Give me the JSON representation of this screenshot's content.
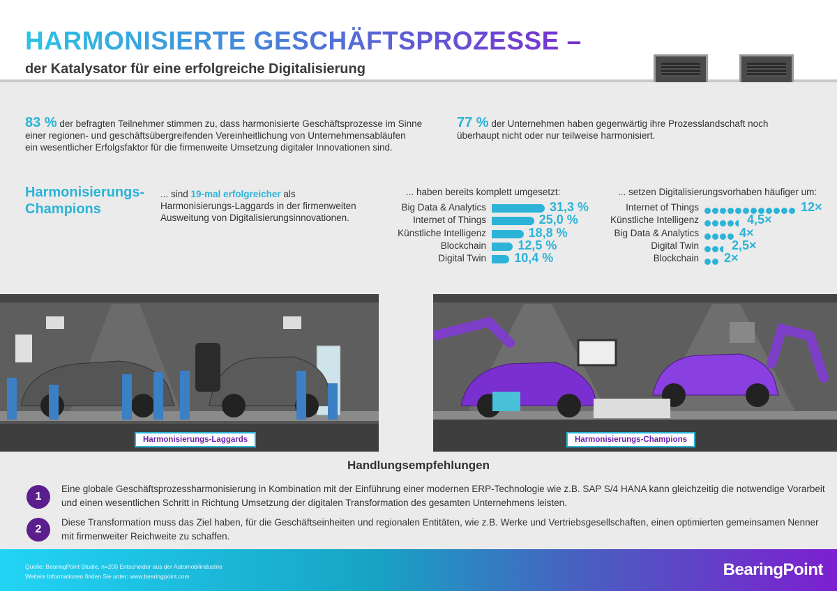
{
  "header": {
    "title": "HARMONISIERTE GESCHÄFTSPROZESSE –",
    "subtitle": "der Katalysator für eine erfolgreiche Digitalisierung"
  },
  "stat1": {
    "value": "83 %",
    "text": "der befragten Teilnehmer stimmen zu, dass harmonisierte Geschäftsprozesse im Sinne",
    "line2": "einer regionen- und geschäftsübergreifenden Vereinheitlichung von Unternehmensabläufen",
    "line3": "ein wesentlicher Erfolgsfaktor für die firmenweite Umsetzung digitaler Innovationen sind."
  },
  "stat2": {
    "value": "77 %",
    "text": "der Unternehmen haben gegenwärtig ihre Prozesslandschaft noch",
    "line2": "überhaupt nicht oder nur teilweise harmonisiert."
  },
  "champions": {
    "heading1": "Harmonisierungs-",
    "heading2": "Champions",
    "pre": "... sind ",
    "highlight": "19-mal erfolgreicher",
    "post": " als",
    "line2": "Harmonisierungs-Laggards in der firmenweiten",
    "line3": "Ausweitung von Digitalisierungsinnovationen."
  },
  "chart_data": [
    {
      "type": "bar",
      "title": "... haben bereits komplett umgesetzt:",
      "categories": [
        "Big Data & Analytics",
        "Internet of Things",
        "Künstliche Intelligenz",
        "Blockchain",
        "Digital Twin"
      ],
      "values": [
        31.3,
        25.0,
        18.8,
        12.5,
        10.4
      ],
      "labels": [
        "31,3 %",
        "25,0 %",
        "18,8 %",
        "12,5 %",
        "10,4 %"
      ],
      "color": "#2bb3d8"
    },
    {
      "type": "bar",
      "title": "... setzen Digitalisierungsvorhaben häufiger um:",
      "categories": [
        "Internet of Things",
        "Künstliche Intelligenz",
        "Big Data & Analytics",
        "Digital Twin",
        "Blockchain"
      ],
      "values": [
        12,
        4.5,
        4,
        2.5,
        2
      ],
      "labels": [
        "12×",
        "4,5×",
        "4×",
        "2,5×",
        "2×"
      ],
      "color": "#2bb3d8"
    }
  ],
  "scenes": {
    "left_label": "Harmonisierungs-Laggards",
    "right_label": "Harmonisierungs-Champions"
  },
  "recommendations": {
    "title": "Handlungsempfehlungen",
    "items": [
      {
        "num": "1",
        "line1": "Eine globale Geschäftsprozessharmonisierung in Kombination mit der Einführung einer modernen ERP-Technologie wie z.B. SAP S/4 HANA kann gleichzeitig die notwendige Vorarbeit",
        "line2": "und einen wesentlichen Schritt in Richtung Umsetzung der digitalen Transformation des gesamten Unternehmens leisten."
      },
      {
        "num": "2",
        "line1": "Diese Transformation muss das Ziel haben, für die Geschäftseinheiten und regionalen Entitäten, wie z.B. Werke und Vertriebsgesellschaften, einen optimierten gemeinsamen Nenner",
        "line2": "mit firmenweiter Reichweite zu schaffen."
      }
    ]
  },
  "footer": {
    "source": "Quelle: BearingPoint Studie, n=200 Entscheider aus der Automobilindustrie",
    "more": "Weitere Informationen finden Sie unter: www.bearingpoint.com",
    "logo": "BearingPoint"
  },
  "colors": {
    "accent": "#2bb3d8",
    "purple": "#5b1e8c"
  }
}
